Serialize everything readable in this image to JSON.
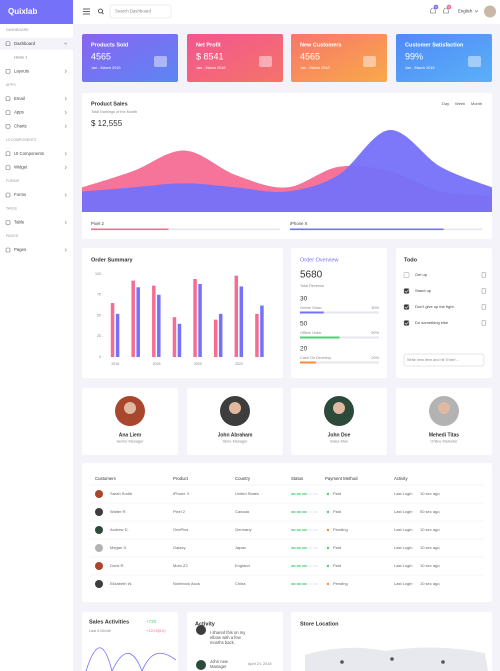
{
  "sidebar": {
    "brand": "Quixlab",
    "menu": [
      {
        "heading": "DASHBOARD",
        "items": [
          {
            "label": "Dashboard",
            "children": [
              "Home 1"
            ]
          },
          {
            "label": "Layouts"
          }
        ]
      },
      {
        "heading": "APPS",
        "items": [
          {
            "label": "Email"
          },
          {
            "label": "Apps"
          },
          {
            "label": "Charts"
          }
        ]
      },
      {
        "heading": "UI COMPONENTS",
        "items": [
          {
            "label": "UI Components"
          },
          {
            "label": "Widget"
          }
        ]
      },
      {
        "heading": "FORMS",
        "items": [
          {
            "label": "Forms"
          }
        ]
      },
      {
        "heading": "TABLE",
        "items": [
          {
            "label": "Table"
          }
        ]
      },
      {
        "heading": "PAGES",
        "items": [
          {
            "label": "Pages"
          }
        ]
      }
    ]
  },
  "topbar": {
    "search_placeholder": "Search Dashboard",
    "badges": [
      "3",
      "3"
    ],
    "language": "English"
  },
  "stats": [
    {
      "title": "Products Sold",
      "value": "4565",
      "period": "Jan - March 2019"
    },
    {
      "title": "Net Profit",
      "value": "$ 8541",
      "period": "Jan - March 2019"
    },
    {
      "title": "New Customers",
      "value": "4565",
      "period": "Jan - March 2019"
    },
    {
      "title": "Customer Satisfaction",
      "value": "99%",
      "period": "Jan - March 2019"
    }
  ],
  "product_sales": {
    "title": "Product Sales",
    "subtitle": "Total Earnings of the Month",
    "total": "$ 12,555",
    "ranges": [
      "Day",
      "Week",
      "Month"
    ],
    "chart": {
      "type": "area",
      "ylim": [
        0,
        100
      ],
      "series": [
        {
          "name": "Pixel 2",
          "color": "#f66d93",
          "values": [
            30,
            50,
            75,
            45,
            30,
            55,
            50,
            25,
            20
          ],
          "progress": 41
        },
        {
          "name": "iPhone X",
          "color": "#7571f9",
          "values": [
            25,
            30,
            35,
            30,
            25,
            45,
            100,
            55,
            30
          ],
          "progress": 80
        }
      ]
    },
    "progress_range": [
      0,
      100
    ]
  },
  "order_summary": {
    "title": "Order Summary",
    "chart": {
      "type": "bar",
      "categories": [
        "2016",
        null,
        "2018",
        null,
        "2020",
        null,
        "2022",
        null
      ],
      "series": [
        {
          "color": "#f66d93",
          "values": [
            65,
            92,
            86,
            48,
            94,
            45,
            98,
            52
          ]
        },
        {
          "color": "#7571f9",
          "values": [
            52,
            84,
            75,
            40,
            88,
            52,
            85,
            62
          ]
        }
      ],
      "ylim": [
        0,
        100
      ],
      "yticks": [
        0,
        25,
        50,
        75,
        100
      ]
    }
  },
  "order_overview": {
    "title": "Order Overview",
    "total": "5680",
    "total_label": "Total Revenue",
    "items": [
      {
        "count": "30",
        "label": "Online Order",
        "percent": 30,
        "percent_label": "30%"
      },
      {
        "count": "50",
        "label": "Offline Order",
        "percent": 50,
        "percent_label": "50%"
      },
      {
        "count": "20",
        "label": "Cash On Develery",
        "percent": 20,
        "percent_label": "20%"
      }
    ],
    "percent_range": [
      0,
      100
    ]
  },
  "todo": {
    "title": "Todo",
    "items": [
      {
        "text": "Get up",
        "done": false
      },
      {
        "text": "Stand up",
        "done": true
      },
      {
        "text": "Don't give up the fight.",
        "done": true
      },
      {
        "text": "Do something else",
        "done": true
      }
    ],
    "placeholder": "Write new item and hit 'Enter'..."
  },
  "team": [
    {
      "name": "Ana Liem",
      "role": "Senior Manager"
    },
    {
      "name": "John Abraham",
      "role": "Store Manager"
    },
    {
      "name": "John Doe",
      "role": "Sales Man"
    },
    {
      "name": "Mehedi Titas",
      "role": "Online Marketer"
    }
  ],
  "table": {
    "headers": [
      "Customers",
      "Product",
      "Country",
      "Status",
      "Payment Method",
      "Activity"
    ],
    "rows": [
      [
        "Sarah Smith",
        "iPhone X",
        "United States",
        "Paid",
        "Last Login",
        "10 sec ago"
      ],
      [
        "Walter R.",
        "Pixel 2",
        "Canada",
        "Paid",
        "Last Login",
        "50 sec ago"
      ],
      [
        "Andrew D.",
        "OnePlus",
        "Germany",
        "Pending",
        "Last Login",
        "10 sec ago"
      ],
      [
        "Megan S.",
        "Galaxy",
        "Japan",
        "Paid",
        "Last Login",
        "10 sec ago"
      ],
      [
        "Doris R.",
        "Moto Z2",
        "England",
        "Paid",
        "Last Login",
        "10 sec ago"
      ],
      [
        "Elizabeth W.",
        "Notebook Asus",
        "China",
        "Pending",
        "Last Login",
        "10 sec ago"
      ]
    ]
  },
  "sales_activities": {
    "title": "Sales Activities",
    "change": "+720",
    "period": "Last 6 Month",
    "growth": "+120.5(5.0)"
  },
  "activity": {
    "title": "Activity",
    "items": [
      {
        "text": "I shared this on my elbow with a few months back."
      },
      {
        "text": "John new Manager",
        "date": "April 24, 2018"
      }
    ]
  },
  "store_location": {
    "title": "Store Location"
  }
}
